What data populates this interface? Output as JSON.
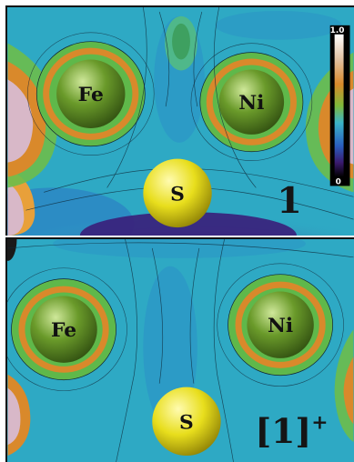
{
  "panels": [
    {
      "id": "top",
      "label": "1",
      "label_sup": "",
      "atoms": [
        {
          "symbol": "Fe",
          "color": "#6a9a2a"
        },
        {
          "symbol": "Ni",
          "color": "#6a9a2a"
        },
        {
          "symbol": "S",
          "color": "#e8de1c"
        }
      ]
    },
    {
      "id": "bottom",
      "label": "[1]",
      "label_sup": "+",
      "atoms": [
        {
          "symbol": "Fe",
          "color": "#6a9a2a"
        },
        {
          "symbol": "Ni",
          "color": "#6a9a2a"
        },
        {
          "symbol": "S",
          "color": "#e8de1c"
        }
      ]
    }
  ],
  "color_scale": {
    "max_label": "1.0",
    "min_label": "0",
    "colors": [
      "#ffffff",
      "#e0c0a0",
      "#d98a2a",
      "#7fb83a",
      "#3bb4c8",
      "#2a5fc0",
      "#3a1a6e",
      "#000000"
    ]
  },
  "colors": {
    "background_field": "#2ea9c4",
    "ring_orange": "#d9892b",
    "ring_green": "#5fb84a",
    "low_region_purple": "#4b3a9a",
    "high_region_pink": "#d8b8c8"
  }
}
